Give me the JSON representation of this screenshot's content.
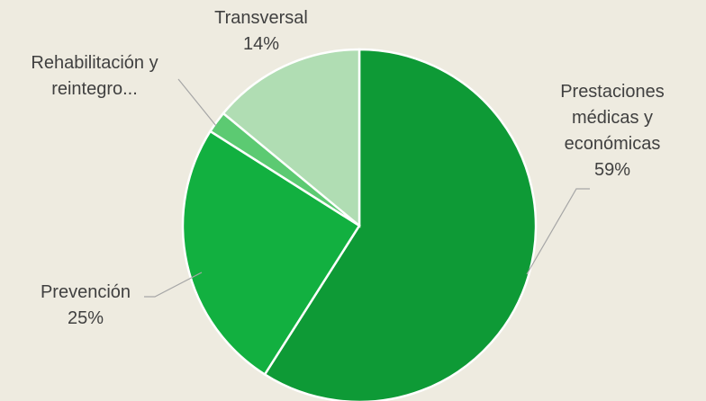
{
  "chart_data": {
    "type": "pie",
    "categories": [
      "Prestaciones médicas y económicas",
      "Prevención",
      "Rehabilitación y reintegro...",
      "Transversal"
    ],
    "values": [
      59,
      25,
      2,
      14
    ],
    "value_labels": [
      "59%",
      "25%",
      null,
      "14%"
    ],
    "colors": [
      "#0e9a36",
      "#12b040",
      "#5cca72",
      "#b0ddb3"
    ]
  }
}
